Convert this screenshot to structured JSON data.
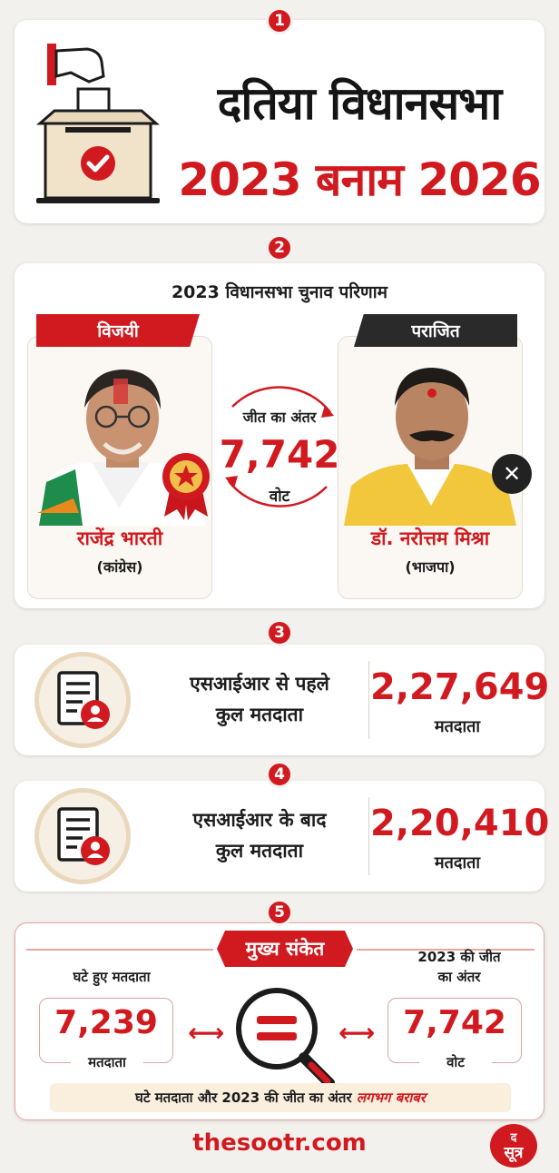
{
  "steps": [
    "1",
    "2",
    "3",
    "4",
    "5"
  ],
  "header": {
    "title_line1": "दतिया विधानसभा",
    "title_line2": "2023 बनाम 2026"
  },
  "results": {
    "heading": "2023 विधानसभा चुनाव परिणाम",
    "winner": {
      "badge": "विजयी",
      "name": "राजेंद्र भारती",
      "party": "(कांग्रेस)"
    },
    "loser": {
      "badge": "पराजित",
      "name": "डॉ. नरोत्तम मिश्रा",
      "party": "(भाजपा)"
    },
    "margin": {
      "label": "जीत का अंतर",
      "value": "7,742",
      "unit": "वोट"
    }
  },
  "before_sir": {
    "label_line1": "एसआईआर से पहले",
    "label_line2": "कुल मतदाता",
    "value": "2,27,649",
    "unit": "मतदाता"
  },
  "after_sir": {
    "label_line1": "एसआईआर के बाद",
    "label_line2": "कुल मतदाता",
    "value": "2,20,410",
    "unit": "मतदाता"
  },
  "key_signal": {
    "title": "मुख्य संकेत",
    "left": {
      "label": "घटे हुए मतदाता",
      "value": "7,239",
      "unit": "मतदाता"
    },
    "right": {
      "label_line1": "2023 की जीत",
      "label_line2": "का अंतर",
      "value": "7,742",
      "unit": "वोट"
    },
    "footer_text": "घटे मतदाता और 2023 की जीत का अंतर",
    "footer_highlight": "लगभग बराबर"
  },
  "footer": {
    "site": "thesootr.com",
    "logo_top": "द",
    "logo_bottom": "सूत्र"
  },
  "colors": {
    "accent": "#d11a1f",
    "dark": "#2a2a2a",
    "background": "#f3f1ee",
    "cream": "#faeedd"
  }
}
